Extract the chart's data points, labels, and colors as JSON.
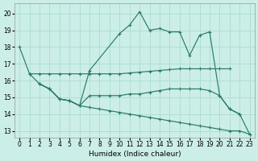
{
  "xlabel": "Humidex (Indice chaleur)",
  "bg_color": "#cceee8",
  "grid_color": "#aaddcc",
  "line_color": "#2a7a6a",
  "xlim": [
    -0.5,
    23.5
  ],
  "ylim": [
    12.6,
    20.6
  ],
  "yticks": [
    13,
    14,
    15,
    16,
    17,
    18,
    19,
    20
  ],
  "xticks": [
    0,
    1,
    2,
    3,
    4,
    5,
    6,
    7,
    8,
    9,
    10,
    11,
    12,
    13,
    14,
    15,
    16,
    17,
    18,
    19,
    20,
    21,
    22,
    23
  ],
  "series": [
    {
      "x": [
        0,
        1,
        2,
        3,
        4,
        5,
        6,
        7,
        10,
        11,
        12,
        13,
        14,
        15,
        16,
        17,
        18,
        19,
        20,
        21,
        22,
        23
      ],
      "y": [
        18.0,
        16.4,
        15.8,
        15.5,
        14.9,
        14.8,
        14.5,
        16.6,
        18.8,
        19.3,
        20.1,
        19.0,
        19.1,
        18.9,
        18.9,
        17.5,
        18.7,
        18.9,
        15.1,
        14.3,
        14.0,
        12.8
      ]
    },
    {
      "x": [
        1,
        2,
        3,
        4,
        5,
        6,
        7,
        8,
        9,
        10,
        11,
        12,
        13,
        14,
        15,
        16,
        17,
        18,
        19,
        20,
        21
      ],
      "y": [
        16.4,
        16.4,
        16.4,
        16.4,
        16.4,
        16.4,
        16.4,
        16.4,
        16.4,
        16.4,
        16.45,
        16.5,
        16.55,
        16.6,
        16.65,
        16.7,
        16.7,
        16.7,
        16.7,
        16.7,
        16.7
      ]
    },
    {
      "x": [
        2,
        3,
        4,
        5,
        6,
        7,
        8,
        9,
        10,
        11,
        12,
        13,
        14,
        15,
        16,
        17,
        18,
        19,
        20,
        21,
        22
      ],
      "y": [
        15.8,
        15.5,
        14.9,
        14.8,
        14.5,
        15.1,
        15.1,
        15.1,
        15.1,
        15.2,
        15.2,
        15.3,
        15.4,
        15.5,
        15.5,
        15.5,
        15.5,
        15.4,
        15.1,
        14.3,
        14.0
      ]
    },
    {
      "x": [
        2,
        3,
        4,
        5,
        6,
        7,
        8,
        9,
        10,
        11,
        12,
        13,
        14,
        15,
        16,
        17,
        18,
        19,
        20,
        21,
        22,
        23
      ],
      "y": [
        15.8,
        15.5,
        14.9,
        14.8,
        14.5,
        14.4,
        14.3,
        14.2,
        14.1,
        14.0,
        13.9,
        13.8,
        13.7,
        13.6,
        13.5,
        13.4,
        13.3,
        13.2,
        13.1,
        13.0,
        13.0,
        12.8
      ]
    }
  ]
}
